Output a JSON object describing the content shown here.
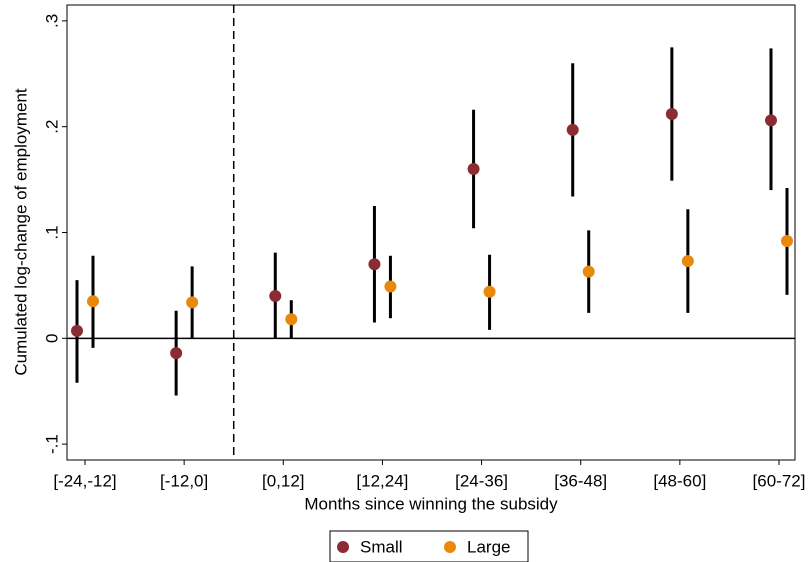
{
  "chart_data": {
    "type": "coefplot",
    "y_label": "Cumulated log-change of employment",
    "x_label": "Months since winning the subsidy",
    "categories": [
      "[-24,-12]",
      "[-12,0]",
      "[0,12]",
      "[12,24]",
      "[24-36]",
      "[36-48]",
      "[48-60]",
      "[60-72]"
    ],
    "series": [
      {
        "name": "Small",
        "color": "#8b2c32",
        "values": [
          0.007,
          -0.014,
          0.04,
          0.07,
          0.16,
          0.197,
          0.212,
          0.206
        ],
        "lower": [
          -0.042,
          -0.054,
          0.0,
          0.015,
          0.104,
          0.134,
          0.149,
          0.14
        ],
        "upper": [
          0.055,
          0.026,
          0.081,
          0.125,
          0.216,
          0.26,
          0.275,
          0.274
        ]
      },
      {
        "name": "Large",
        "color": "#e8890c",
        "values": [
          0.035,
          0.034,
          0.018,
          0.049,
          0.044,
          0.063,
          0.073,
          0.092
        ],
        "lower": [
          -0.009,
          0.0,
          0.0,
          0.019,
          0.008,
          0.024,
          0.024,
          0.041
        ],
        "upper": [
          0.078,
          0.068,
          0.036,
          0.078,
          0.079,
          0.102,
          0.122,
          0.142
        ]
      }
    ],
    "ylim": [
      -0.115,
      0.315
    ],
    "yticks": [
      {
        "value": -0.1,
        "label": "-.1"
      },
      0,
      {
        "value": 0.1,
        "label": ".1"
      },
      {
        "value": 0.2,
        "label": ".2"
      },
      {
        "value": 0.3,
        "label": ".3"
      }
    ],
    "hline": 0,
    "divider_after_category": 1,
    "legend": "bottom"
  }
}
